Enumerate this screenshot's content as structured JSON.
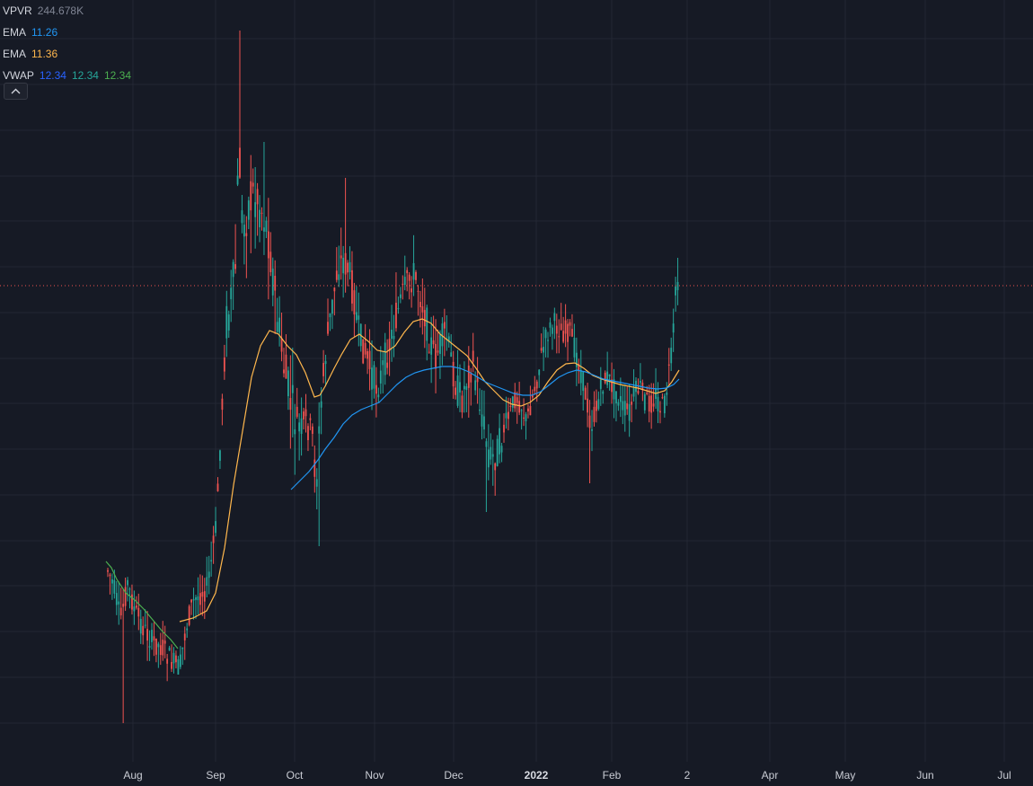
{
  "legend": {
    "vpvr": {
      "label": "VPVR",
      "value": "244.678K"
    },
    "ema1": {
      "label": "EMA",
      "value": "11.26",
      "color": "#2196f3"
    },
    "ema2": {
      "label": "EMA",
      "value": "11.36",
      "color": "#ffb74d"
    },
    "vwap": {
      "label": "VWAP",
      "values": [
        "12.34",
        "12.34",
        "12.34"
      ],
      "colors": [
        "#2962ff",
        "#26a69a",
        "#4caf50"
      ]
    }
  },
  "icons": {
    "collapse": "chevron-up-icon"
  },
  "colors": {
    "background": "#161a25",
    "grid": "#232733",
    "up": "#26a69a",
    "down": "#ef5350",
    "last_price_line": "#ef5350"
  },
  "chart_data": {
    "type": "candlestick",
    "time_axis": {
      "labels": [
        {
          "text": "Aug",
          "bold": false
        },
        {
          "text": "Sep",
          "bold": false
        },
        {
          "text": "Oct",
          "bold": false
        },
        {
          "text": "Nov",
          "bold": false
        },
        {
          "text": "Dec",
          "bold": false
        },
        {
          "text": "2022",
          "bold": true
        },
        {
          "text": "Feb",
          "bold": false
        },
        {
          "text": "2",
          "bold": false
        },
        {
          "text": "Apr",
          "bold": false
        },
        {
          "text": "May",
          "bold": false
        },
        {
          "text": "Jun",
          "bold": false
        },
        {
          "text": "Jul",
          "bold": false
        }
      ]
    },
    "grid": true,
    "price_axis_visible": false
  }
}
